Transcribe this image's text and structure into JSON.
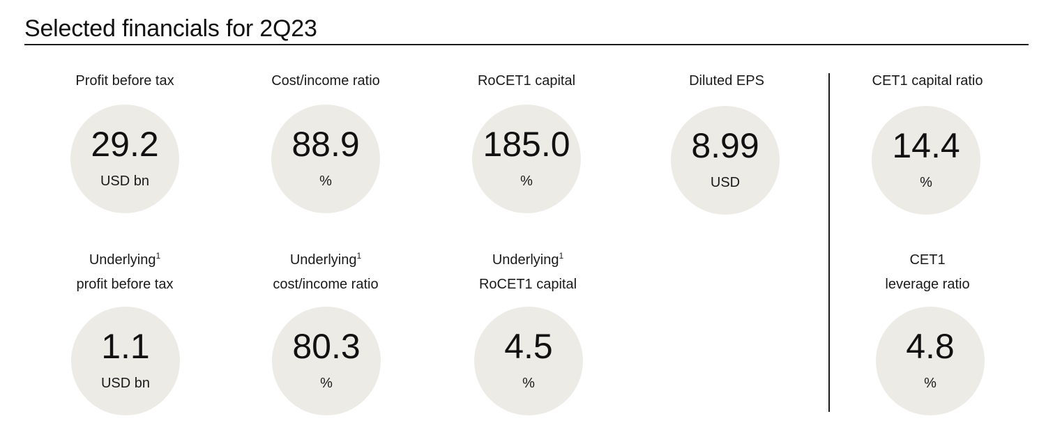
{
  "title": "Selected financials for 2Q23",
  "metrics": [
    {
      "label": "Profit before tax",
      "value": "29.2",
      "unit": "USD bn"
    },
    {
      "label": "Cost/income ratio",
      "value": "88.9",
      "unit": "%"
    },
    {
      "label": "RoCET1 capital",
      "value": "185.0",
      "unit": "%"
    },
    {
      "label": "Diluted EPS",
      "value": "8.99",
      "unit": "USD"
    },
    {
      "label": "CET1 capital ratio",
      "value": "14.4",
      "unit": "%"
    },
    {
      "label_line1": "Underlying",
      "footnote": "1",
      "label_line2": "profit before tax",
      "value": "1.1",
      "unit": "USD bn"
    },
    {
      "label_line1": "Underlying",
      "footnote": "1",
      "label_line2": "cost/income ratio",
      "value": "80.3",
      "unit": "%"
    },
    {
      "label_line1": "Underlying",
      "footnote": "1",
      "label_line2": "RoCET1 capital",
      "value": "4.5",
      "unit": "%"
    },
    {
      "label_line1": "CET1",
      "label_line2": "leverage ratio",
      "value": "4.8",
      "unit": "%"
    }
  ]
}
